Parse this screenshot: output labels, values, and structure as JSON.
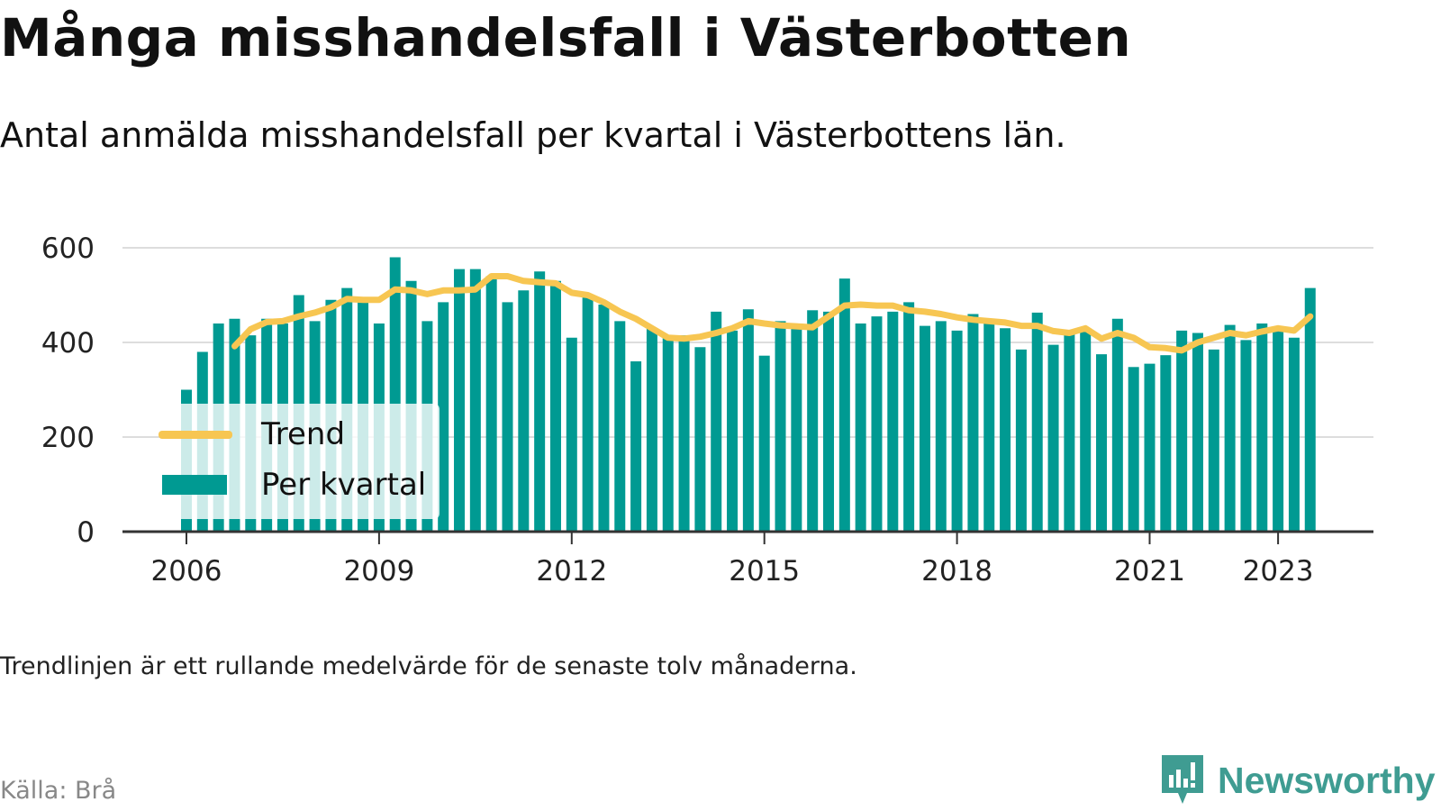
{
  "header": {
    "title": "Många misshandelsfall i Västerbotten",
    "subtitle": "Antal anmälda misshandelsfall per kvartal i Västerbottens län."
  },
  "footer": {
    "note": "Trendlinjen är ett rullande medelvärde för de senaste tolv månaderna.",
    "source": "Källa: Brå",
    "brand": "Newsworthy"
  },
  "colors": {
    "bar": "#009a92",
    "trend": "#f7c652",
    "grid": "#dddddd",
    "axis": "#333333",
    "brand": "#3f9c92"
  },
  "chart_data": {
    "type": "bar",
    "x_unit": "quarter",
    "xtick_labels": [
      "2006",
      "2009",
      "2012",
      "2015",
      "2018",
      "2021",
      "2023"
    ],
    "yticks": [
      0,
      200,
      400,
      600
    ],
    "ylim": [
      0,
      600
    ],
    "grid": true,
    "legend": {
      "position": "bottom-left",
      "entries": [
        "Trend",
        "Per kvartal"
      ]
    },
    "series": [
      {
        "name": "Per kvartal",
        "type": "bar",
        "x": [
          "2006-Q1",
          "2006-Q2",
          "2006-Q3",
          "2006-Q4",
          "2007-Q1",
          "2007-Q2",
          "2007-Q3",
          "2007-Q4",
          "2008-Q1",
          "2008-Q2",
          "2008-Q3",
          "2008-Q4",
          "2009-Q1",
          "2009-Q2",
          "2009-Q3",
          "2009-Q4",
          "2010-Q1",
          "2010-Q2",
          "2010-Q3",
          "2010-Q4",
          "2011-Q1",
          "2011-Q2",
          "2011-Q3",
          "2011-Q4",
          "2012-Q1",
          "2012-Q2",
          "2012-Q3",
          "2012-Q4",
          "2013-Q1",
          "2013-Q2",
          "2013-Q3",
          "2013-Q4",
          "2014-Q1",
          "2014-Q2",
          "2014-Q3",
          "2014-Q4",
          "2015-Q1",
          "2015-Q2",
          "2015-Q3",
          "2015-Q4",
          "2016-Q1",
          "2016-Q2",
          "2016-Q3",
          "2016-Q4",
          "2017-Q1",
          "2017-Q2",
          "2017-Q3",
          "2017-Q4",
          "2018-Q1",
          "2018-Q2",
          "2018-Q3",
          "2018-Q4",
          "2019-Q1",
          "2019-Q2",
          "2019-Q3",
          "2019-Q4",
          "2020-Q1",
          "2020-Q2",
          "2020-Q3",
          "2020-Q4",
          "2021-Q1",
          "2021-Q2",
          "2021-Q3",
          "2021-Q4",
          "2022-Q1",
          "2022-Q2",
          "2022-Q3",
          "2022-Q4",
          "2023-Q1",
          "2023-Q2",
          "2023-Q3"
        ],
        "values": [
          300,
          380,
          440,
          450,
          415,
          450,
          440,
          500,
          445,
          490,
          515,
          485,
          440,
          580,
          530,
          445,
          485,
          555,
          555,
          540,
          485,
          510,
          550,
          530,
          410,
          495,
          480,
          445,
          360,
          430,
          410,
          415,
          390,
          465,
          425,
          470,
          372,
          445,
          430,
          468,
          465,
          535,
          440,
          455,
          465,
          485,
          435,
          445,
          425,
          460,
          440,
          430,
          385,
          463,
          395,
          420,
          430,
          375,
          450,
          348,
          355,
          373,
          425,
          420,
          385,
          437,
          405,
          440,
          430,
          410,
          515
        ]
      },
      {
        "name": "Trend",
        "type": "line",
        "x": [
          "2006-Q4",
          "2007-Q1",
          "2007-Q2",
          "2007-Q3",
          "2007-Q4",
          "2008-Q1",
          "2008-Q2",
          "2008-Q3",
          "2008-Q4",
          "2009-Q1",
          "2009-Q2",
          "2009-Q3",
          "2009-Q4",
          "2010-Q1",
          "2010-Q2",
          "2010-Q3",
          "2010-Q4",
          "2011-Q1",
          "2011-Q2",
          "2011-Q3",
          "2011-Q4",
          "2012-Q1",
          "2012-Q2",
          "2012-Q3",
          "2012-Q4",
          "2013-Q1",
          "2013-Q2",
          "2013-Q3",
          "2013-Q4",
          "2014-Q1",
          "2014-Q2",
          "2014-Q3",
          "2014-Q4",
          "2015-Q1",
          "2015-Q2",
          "2015-Q3",
          "2015-Q4",
          "2016-Q1",
          "2016-Q2",
          "2016-Q3",
          "2016-Q4",
          "2017-Q1",
          "2017-Q2",
          "2017-Q3",
          "2017-Q4",
          "2018-Q1",
          "2018-Q2",
          "2018-Q3",
          "2018-Q4",
          "2019-Q1",
          "2019-Q2",
          "2019-Q3",
          "2019-Q4",
          "2020-Q1",
          "2020-Q2",
          "2020-Q3",
          "2020-Q4",
          "2021-Q1",
          "2021-Q2",
          "2021-Q3",
          "2021-Q4",
          "2022-Q1",
          "2022-Q2",
          "2022-Q3",
          "2022-Q4",
          "2023-Q1",
          "2023-Q2",
          "2023-Q3"
        ],
        "values": [
          392,
          428,
          443,
          445,
          455,
          463,
          474,
          492,
          490,
          490,
          512,
          510,
          502,
          510,
          510,
          512,
          540,
          540,
          530,
          527,
          525,
          505,
          500,
          485,
          465,
          450,
          430,
          410,
          408,
          412,
          420,
          430,
          445,
          440,
          436,
          434,
          432,
          455,
          478,
          480,
          478,
          478,
          468,
          465,
          460,
          453,
          448,
          445,
          442,
          435,
          435,
          424,
          420,
          430,
          408,
          420,
          410,
          390,
          388,
          383,
          400,
          410,
          420,
          415,
          423,
          430,
          425,
          455
        ]
      }
    ]
  }
}
